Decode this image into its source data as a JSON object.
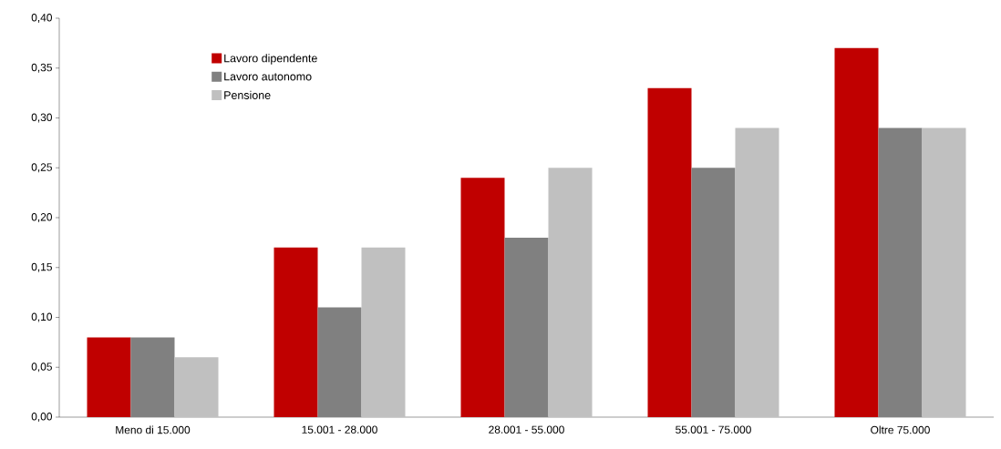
{
  "chart_data": {
    "type": "bar",
    "categories": [
      "Meno di 15.000",
      "15.001 - 28.000",
      "28.001 - 55.000",
      "55.001 - 75.000",
      "Oltre 75.000"
    ],
    "series": [
      {
        "name": "Lavoro dipendente",
        "color": "#c00000",
        "values": [
          0.08,
          0.17,
          0.24,
          0.33,
          0.37
        ]
      },
      {
        "name": "Lavoro autonomo",
        "color": "#808080",
        "values": [
          0.08,
          0.11,
          0.18,
          0.25,
          0.29
        ]
      },
      {
        "name": "Pensione",
        "color": "#c0c0c0",
        "values": [
          0.06,
          0.17,
          0.25,
          0.29,
          0.29
        ]
      }
    ],
    "ylim": [
      0,
      0.4
    ],
    "yticks": [
      {
        "value": 0,
        "label": "0,00"
      },
      {
        "value": 0.05,
        "label": "0,05"
      },
      {
        "value": 0.1,
        "label": "0,10"
      },
      {
        "value": 0.15,
        "label": "0,15"
      },
      {
        "value": 0.2,
        "label": "0,20"
      },
      {
        "value": 0.25,
        "label": "0,25"
      },
      {
        "value": 0.3,
        "label": "0,30"
      },
      {
        "value": 0.35,
        "label": "0,35"
      },
      {
        "value": 0.4,
        "label": "0,40"
      }
    ],
    "grid": false,
    "legend": "top left"
  }
}
